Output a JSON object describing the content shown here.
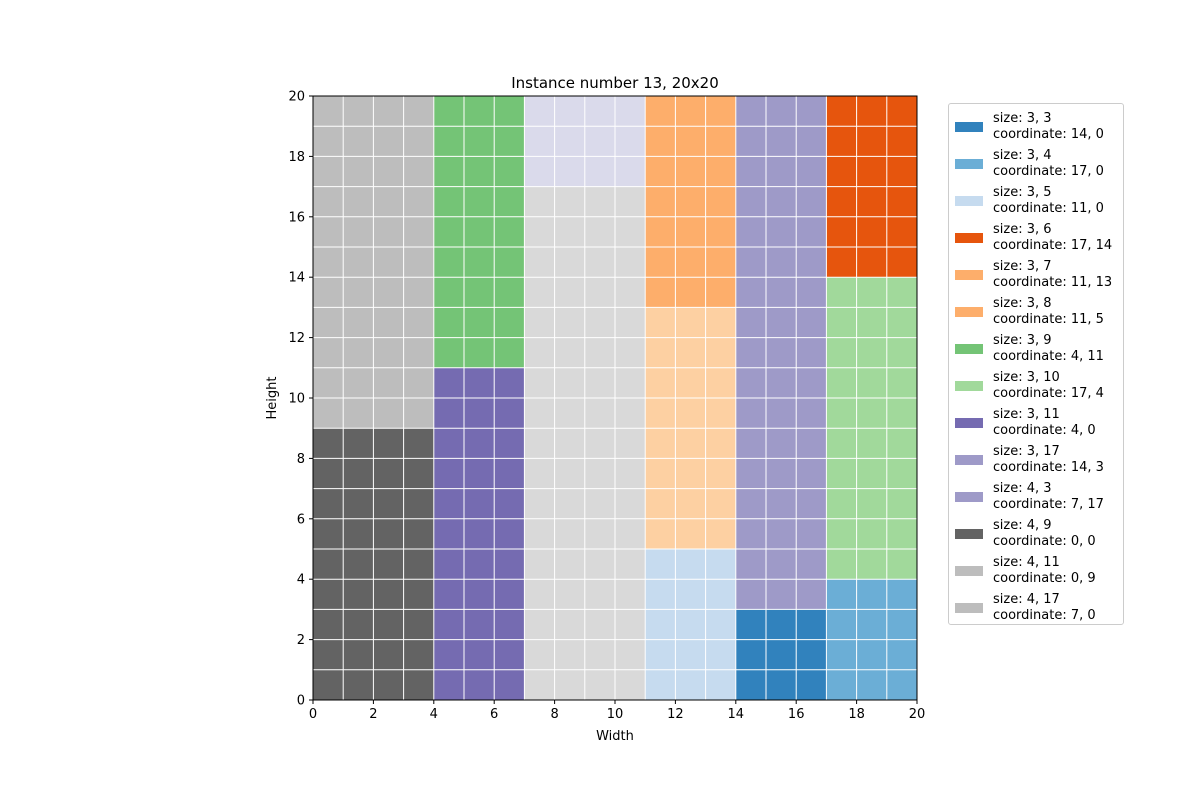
{
  "chart_data": {
    "type": "heatmap",
    "title": "Instance number 13, 20x20",
    "xlabel": "Width",
    "ylabel": "Height",
    "xlim": [
      0,
      20
    ],
    "ylim": [
      0,
      20
    ],
    "xticks": [
      "0",
      "2",
      "4",
      "6",
      "8",
      "10",
      "12",
      "14",
      "16",
      "18",
      "20"
    ],
    "yticks": [
      "0",
      "2",
      "4",
      "6",
      "8",
      "10",
      "12",
      "14",
      "16",
      "18",
      "20"
    ],
    "grid": true,
    "legend_placement": "outside right",
    "rectangles": [
      {
        "w": 3,
        "h": 3,
        "x": 14,
        "y": 0,
        "color": "#3182bd",
        "label1": "size: 3, 3",
        "label2": "coordinate: 14, 0"
      },
      {
        "w": 3,
        "h": 4,
        "x": 17,
        "y": 0,
        "color": "#6baed6",
        "label1": "size: 3, 4",
        "label2": "coordinate: 17, 0"
      },
      {
        "w": 3,
        "h": 5,
        "x": 11,
        "y": 0,
        "color": "#c6dbef",
        "label1": "size: 3, 5",
        "label2": "coordinate: 11, 0"
      },
      {
        "w": 3,
        "h": 6,
        "x": 17,
        "y": 14,
        "color": "#e6550d",
        "label1": "size: 3, 6",
        "label2": "coordinate: 17, 14"
      },
      {
        "w": 3,
        "h": 7,
        "x": 11,
        "y": 13,
        "color": "#fdae6b",
        "label1": "size: 3, 7",
        "label2": "coordinate: 11, 13"
      },
      {
        "w": 3,
        "h": 8,
        "x": 11,
        "y": 5,
        "color": "#fdd0a2",
        "legend_color": "#fdae6b",
        "label1": "size: 3, 8",
        "label2": "coordinate: 11, 5"
      },
      {
        "w": 3,
        "h": 9,
        "x": 4,
        "y": 11,
        "color": "#74c476",
        "label1": "size: 3, 9",
        "label2": "coordinate: 4, 11"
      },
      {
        "w": 3,
        "h": 10,
        "x": 17,
        "y": 4,
        "color": "#a1d99b",
        "label1": "size: 3, 10",
        "label2": "coordinate: 17, 4"
      },
      {
        "w": 3,
        "h": 11,
        "x": 4,
        "y": 0,
        "color": "#756bb1",
        "label1": "size: 3, 11",
        "label2": "coordinate: 4, 0"
      },
      {
        "w": 3,
        "h": 17,
        "x": 14,
        "y": 3,
        "color": "#9e9ac8",
        "label1": "size: 3, 17",
        "label2": "coordinate: 14, 3"
      },
      {
        "w": 4,
        "h": 3,
        "x": 7,
        "y": 17,
        "color": "#dadaeb",
        "legend_color": "#9e9ac8",
        "label1": "size: 4, 3",
        "label2": "coordinate: 7, 17"
      },
      {
        "w": 4,
        "h": 9,
        "x": 0,
        "y": 0,
        "color": "#636363",
        "label1": "size: 4, 9",
        "label2": "coordinate: 0, 0"
      },
      {
        "w": 4,
        "h": 11,
        "x": 0,
        "y": 9,
        "color": "#bdbdbd",
        "label1": "size: 4, 11",
        "label2": "coordinate: 0, 9"
      },
      {
        "w": 4,
        "h": 17,
        "x": 7,
        "y": 0,
        "color": "#d9d9d9",
        "legend_color": "#bdbdbd",
        "label1": "size: 4, 17",
        "label2": "coordinate: 7, 0"
      }
    ]
  }
}
